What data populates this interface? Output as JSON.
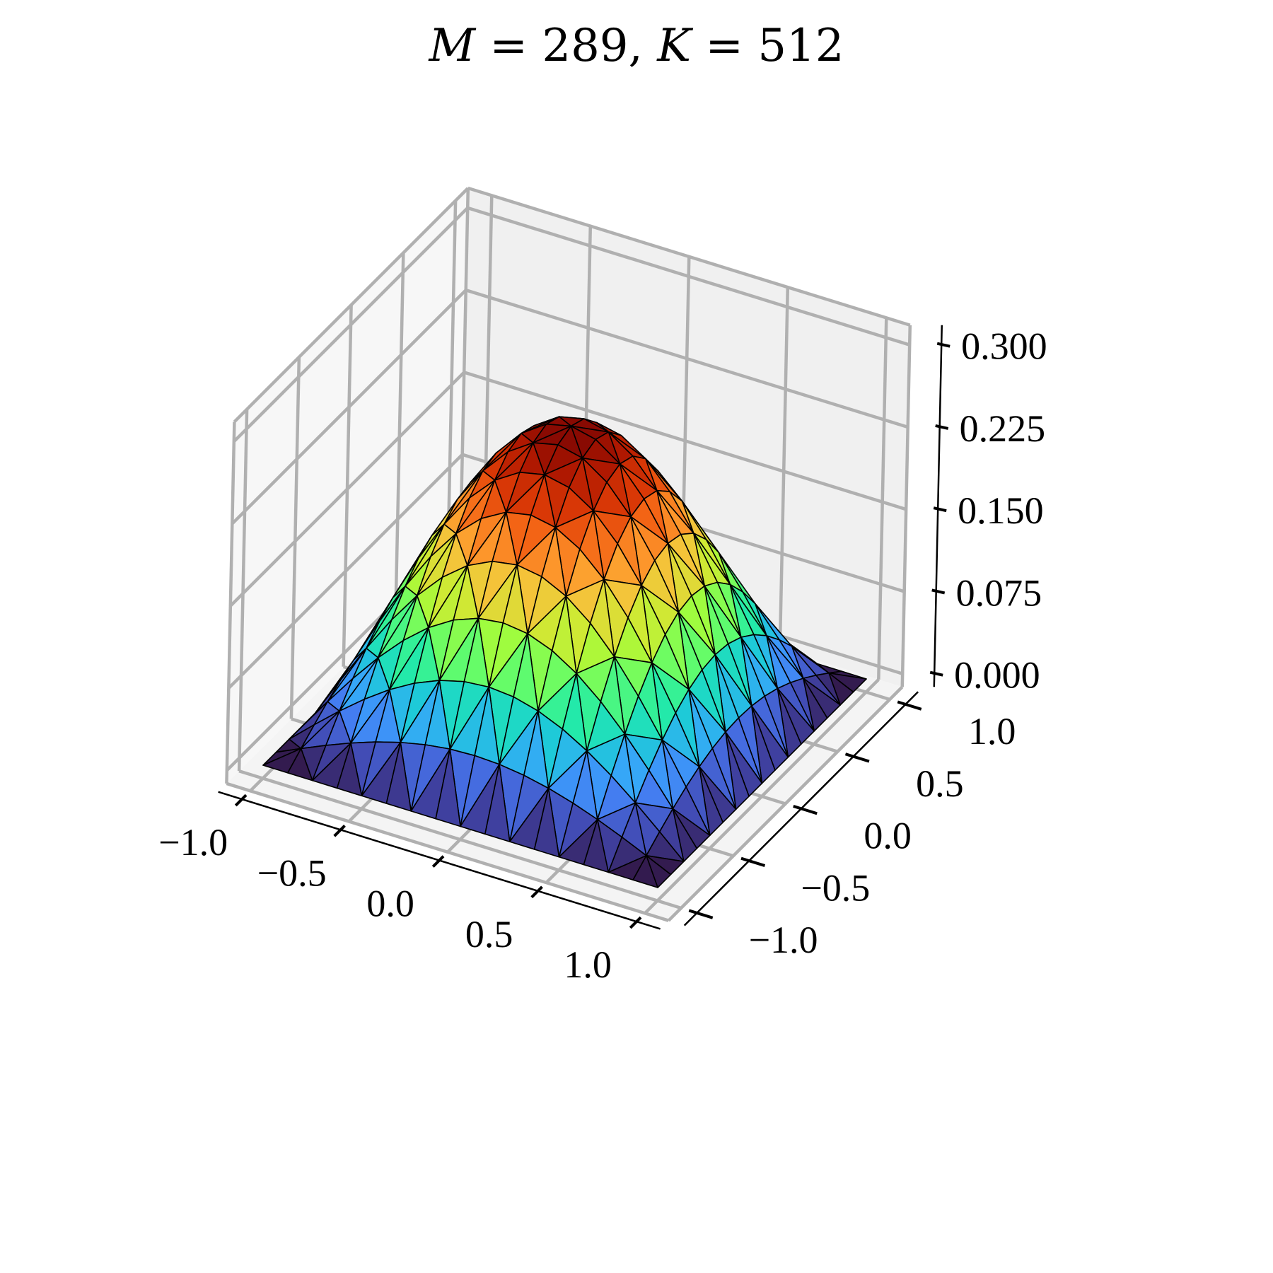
{
  "figure": {
    "title": "M = 289, K = 512",
    "title_parts": {
      "m_var": "M",
      "m_eq": " = 289, ",
      "k_var": "K",
      "k_eq": " = 512"
    }
  },
  "colors": {
    "pane_left": "#f7f7f7",
    "pane_back": "#f0f0f0",
    "pane_floor": "#f4f4f4",
    "grid": "#b0b0b0",
    "axis": "#000000",
    "edge": "#000000",
    "colormap": [
      "#30123b",
      "#4145ab",
      "#4675ed",
      "#39a2fc",
      "#1bcfd4",
      "#24eca6",
      "#61fc6c",
      "#a4fc3b",
      "#d1e834",
      "#f3c63a",
      "#fe9b2d",
      "#f36315",
      "#d93806",
      "#b11901",
      "#7a0402"
    ]
  },
  "chart_data": {
    "type": "surface3d",
    "title": "M = 289, K = 512",
    "description": "Triangulated 3D surface (trisurf) of a sine-bump z = 0.27*cos(pi x/2)*cos(pi y/2) shaped function on [-1,1]x[-1,1], colored with turbo-like colormap, black edges",
    "xlabel": "",
    "ylabel": "",
    "zlabel": "",
    "xlim": [
      -1.0,
      1.0
    ],
    "ylim": [
      -1.0,
      1.0
    ],
    "zlim": [
      0.0,
      0.3
    ],
    "x_ticks": [
      "−1.0",
      "−0.5",
      "0.0",
      "0.5",
      "1.0"
    ],
    "y_ticks": [
      "−1.0",
      "−0.5",
      "0.0",
      "0.5",
      "1.0"
    ],
    "z_ticks": [
      "0.000",
      "0.075",
      "0.150",
      "0.225",
      "0.300"
    ],
    "x_tick_values": [
      -1.0,
      -0.5,
      0.0,
      0.5,
      1.0
    ],
    "y_tick_values": [
      -1.0,
      -0.5,
      0.0,
      0.5,
      1.0
    ],
    "z_tick_values": [
      0.0,
      0.075,
      0.15,
      0.225,
      0.3
    ],
    "grid": true,
    "mesh_nodes_per_side": 17,
    "mesh_nodes_total": 289,
    "mesh_triangles": 512,
    "peak": {
      "x": 0.0,
      "y": 0.0,
      "z": 0.27
    },
    "boundary_value": 0.0,
    "colormap": "turbo"
  }
}
